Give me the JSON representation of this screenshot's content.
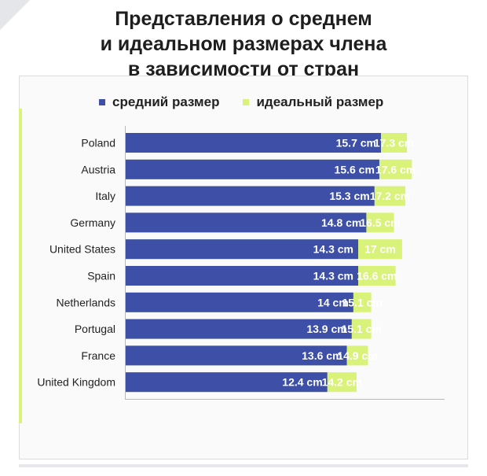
{
  "title_lines": [
    "Представления о среднем",
    "и идеальном размерах члена",
    "в зависимости от стран"
  ],
  "colors": {
    "average": "#3d4fa6",
    "ideal": "#d9f27a",
    "axis": "#b8b8b8"
  },
  "chart_data": {
    "type": "bar",
    "orientation": "horizontal",
    "categories": [
      "Poland",
      "Austria",
      "Italy",
      "Germany",
      "United States",
      "Spain",
      "Netherlands",
      "Portugal",
      "France",
      "United Kingdom"
    ],
    "series": [
      {
        "name": "средний размер",
        "values": [
          15.7,
          15.6,
          15.3,
          14.8,
          14.3,
          14.3,
          14,
          13.9,
          13.6,
          12.4
        ],
        "labels": [
          "15.7 cm",
          "15.6 cm",
          "15.3 cm",
          "14.8 cm",
          "14.3 cm",
          "14.3 cm",
          "14 cm",
          "13.9 cm",
          "13.6 cm",
          "12.4 cm"
        ]
      },
      {
        "name": "идеальный размер",
        "values": [
          17.3,
          17.6,
          17.2,
          16.5,
          17,
          16.6,
          15.1,
          15.1,
          14.9,
          14.2
        ],
        "labels": [
          "17.3 cm",
          "17.6 cm",
          "17.2 cm",
          "16.5 cm",
          "17 cm",
          "16.6 cm",
          "15.1 cm",
          "15.1 cm",
          "14.9 cm",
          "14.2 cm"
        ]
      }
    ],
    "legend_position": "top",
    "grid": false
  }
}
